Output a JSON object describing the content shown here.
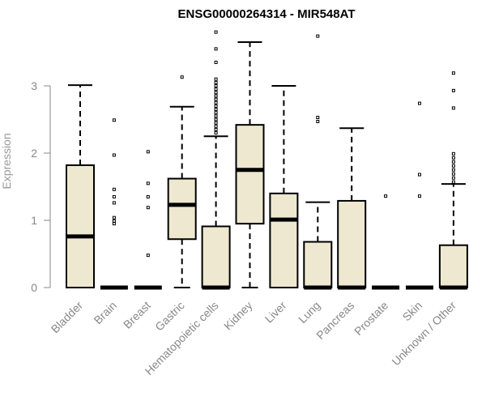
{
  "chart_data": {
    "type": "boxplot",
    "title": "ENSG00000264314 - MIR548AT",
    "xlabel": "",
    "ylabel": "Expression",
    "ylim": [
      0,
      3.9
    ],
    "yticks": [
      0,
      1,
      2,
      3
    ],
    "grid": false,
    "box_fill": "#EEE8D0",
    "categories": [
      "Bladder",
      "Brain",
      "Breast",
      "Gastric",
      "Hematopoietic cells",
      "Kidney",
      "Liver",
      "Lung",
      "Pancreas",
      "Prostate",
      "Skin",
      "Unknown / Other"
    ],
    "boxes": [
      {
        "whisker_low": 0,
        "q1": 0,
        "median": 0.76,
        "q3": 1.82,
        "whisker_high": 3.01,
        "outliers": []
      },
      {
        "whisker_low": 0,
        "q1": 0,
        "median": 0,
        "q3": 0,
        "whisker_high": 0,
        "outliers": [
          2.49,
          1.97,
          1.46,
          1.35,
          1.26,
          1.04,
          0.99,
          0.95
        ]
      },
      {
        "whisker_low": 0,
        "q1": 0,
        "median": 0,
        "q3": 0,
        "whisker_high": 0,
        "outliers": [
          2.02,
          1.55,
          1.35,
          1.19,
          0.48
        ]
      },
      {
        "whisker_low": 0,
        "q1": 0.72,
        "median": 1.23,
        "q3": 1.62,
        "whisker_high": 2.69,
        "outliers": [
          3.13
        ]
      },
      {
        "whisker_low": 0,
        "q1": 0,
        "median": 0,
        "q3": 0.91,
        "whisker_high": 2.25,
        "outliers": [
          3.8,
          3.55,
          3.35,
          3.1,
          3.05,
          3.0,
          2.95,
          2.9,
          2.85,
          2.8,
          2.75,
          2.7,
          2.65,
          2.6,
          2.55,
          2.5,
          2.45,
          2.4,
          2.35,
          2.3
        ]
      },
      {
        "whisker_low": 0,
        "q1": 0.95,
        "median": 1.75,
        "q3": 2.42,
        "whisker_high": 3.65,
        "outliers": []
      },
      {
        "whisker_low": 0,
        "q1": 0,
        "median": 1.01,
        "q3": 1.4,
        "whisker_high": 3.0,
        "outliers": []
      },
      {
        "whisker_low": 0,
        "q1": 0,
        "median": 0,
        "q3": 0.68,
        "whisker_high": 1.27,
        "outliers": [
          3.74,
          2.53,
          2.47
        ]
      },
      {
        "whisker_low": 0,
        "q1": 0,
        "median": 0,
        "q3": 1.29,
        "whisker_high": 2.37,
        "outliers": []
      },
      {
        "whisker_low": 0,
        "q1": 0,
        "median": 0,
        "q3": 0,
        "whisker_high": 0,
        "outliers": [
          1.36
        ]
      },
      {
        "whisker_low": 0,
        "q1": 0,
        "median": 0,
        "q3": 0,
        "whisker_high": 0,
        "outliers": [
          2.74,
          1.68,
          1.36
        ]
      },
      {
        "whisker_low": 0,
        "q1": 0,
        "median": 0,
        "q3": 0.63,
        "whisker_high": 1.54,
        "outliers": [
          3.19,
          2.93,
          2.67,
          1.99,
          1.93,
          1.87,
          1.81,
          1.75,
          1.69,
          1.63,
          1.57
        ]
      }
    ]
  }
}
